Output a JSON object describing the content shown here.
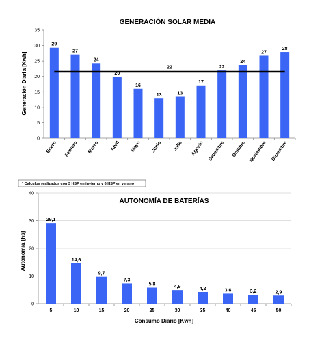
{
  "chart_data": [
    {
      "type": "bar",
      "title": "GENERACIÓN SOLAR MEDIA",
      "xlabel": "",
      "ylabel": "Generación Diaria [Kwh]",
      "ylim": [
        0,
        35
      ],
      "yticks": [
        0,
        5,
        10,
        15,
        20,
        25,
        30,
        35
      ],
      "categories": [
        "Enero",
        "Febrero",
        "Marzo",
        "Abril",
        "Mayo",
        "Junio",
        "Julio",
        "Agosto",
        "Setiembre",
        "Octubre",
        "Noviembre",
        "Diciembre"
      ],
      "values": [
        29.3,
        27.1,
        24.3,
        19.9,
        16,
        12.8,
        13.4,
        17.1,
        21.9,
        23.7,
        26.7,
        27.9
      ],
      "data_labels": [
        "29",
        "27",
        "24",
        "20",
        "16",
        "13",
        "13",
        "17",
        "22",
        "24",
        "27",
        "28"
      ],
      "reference_line": {
        "value": 21.6,
        "label": "22",
        "color": "#000000"
      },
      "note": "* Calculos realizados con 3 HSP en invierno y 6 HSP en verano",
      "bar_color": "#3a65f5",
      "grid": false,
      "legend": "none"
    },
    {
      "type": "bar",
      "title": "AUTONOMÍA DE BATERÍAS",
      "xlabel": "Consumo Diario [Kwh]",
      "ylabel": "Autonomía [hs]",
      "ylim": [
        0,
        40
      ],
      "yticks": [
        0,
        10,
        20,
        30,
        40
      ],
      "categories": [
        "5",
        "10",
        "15",
        "20",
        "25",
        "30",
        "35",
        "40",
        "45",
        "50"
      ],
      "values": [
        29.1,
        14.6,
        9.7,
        7.3,
        5.8,
        4.9,
        4.2,
        3.6,
        3.2,
        2.9
      ],
      "data_labels": [
        "29,1",
        "14,6",
        "9,7",
        "7,3",
        "5,8",
        "4,9",
        "4,2",
        "3,6",
        "3,2",
        "2,9"
      ],
      "bar_color": "#3a65f5",
      "grid": true,
      "legend": "none"
    }
  ]
}
